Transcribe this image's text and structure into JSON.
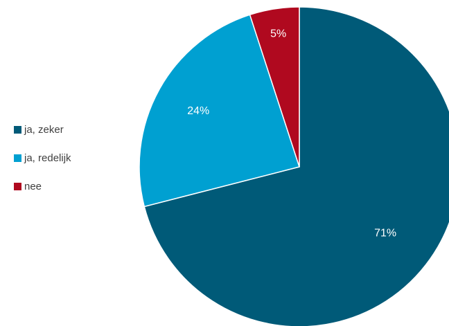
{
  "chart_data": {
    "type": "pie",
    "categories": [
      "ja, zeker",
      "ja, redelijk",
      "nee"
    ],
    "values": [
      71,
      24,
      5
    ],
    "labels": [
      "71%",
      "24%",
      "5%"
    ],
    "colors": [
      "#005a78",
      "#00a0d1",
      "#b0091f"
    ],
    "start_angle_deg": 0,
    "direction": "clockwise",
    "legend_position": "left"
  }
}
